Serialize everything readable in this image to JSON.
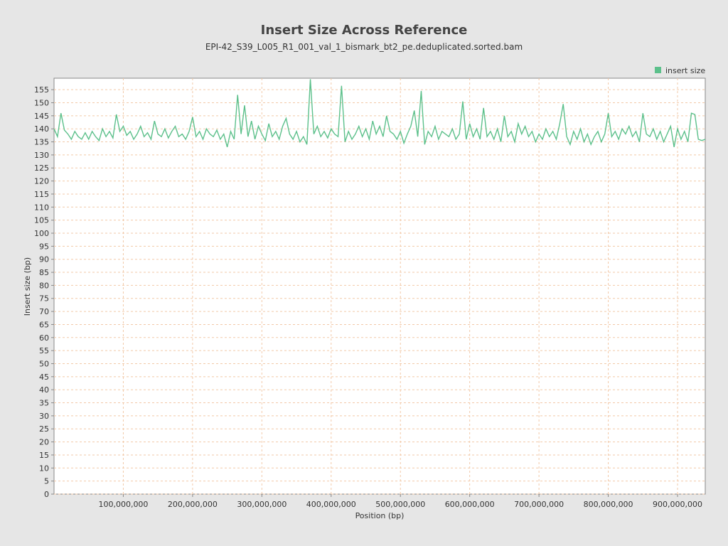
{
  "chart_data": {
    "type": "line",
    "title": "Insert Size Across Reference",
    "subtitle": "EPI-42_S39_L005_R1_001_val_1_bismark_bt2_pe.deduplicated.sorted.bam",
    "x_label": "Position (bp)",
    "y_label": "Insert size (bp)",
    "legend": "top-right",
    "grid": true,
    "xlim": [
      0,
      940000000
    ],
    "ylim": [
      0,
      159.4
    ],
    "xticks": [
      {
        "value": 100000000,
        "label": "100,000,000"
      },
      {
        "value": 200000000,
        "label": "200,000,000"
      },
      {
        "value": 300000000,
        "label": "300,000,000"
      },
      {
        "value": 400000000,
        "label": "400,000,000"
      },
      {
        "value": 500000000,
        "label": "500,000,000"
      },
      {
        "value": 600000000,
        "label": "600,000,000"
      },
      {
        "value": 700000000,
        "label": "700,000,000"
      },
      {
        "value": 800000000,
        "label": "800,000,000"
      },
      {
        "value": 900000000,
        "label": "900,000,000"
      }
    ],
    "yticks": [
      0,
      5,
      10,
      15,
      20,
      25,
      30,
      35,
      40,
      45,
      50,
      55,
      60,
      65,
      70,
      75,
      80,
      85,
      90,
      95,
      100,
      105,
      110,
      115,
      120,
      125,
      130,
      135,
      140,
      145,
      150,
      155
    ],
    "x": [
      0,
      5000000,
      10000000,
      15000000,
      20000000,
      25000000,
      30000000,
      35000000,
      40000000,
      45000000,
      50000000,
      55000000,
      60000000,
      65000000,
      70000000,
      75000000,
      80000000,
      85000000,
      90000000,
      95000000,
      100000000,
      105000000,
      110000000,
      115000000,
      120000000,
      125000000,
      130000000,
      135000000,
      140000000,
      145000000,
      150000000,
      155000000,
      160000000,
      165000000,
      170000000,
      175000000,
      180000000,
      185000000,
      190000000,
      195000000,
      200000000,
      205000000,
      210000000,
      215000000,
      220000000,
      225000000,
      230000000,
      235000000,
      240000000,
      245000000,
      250000000,
      255000000,
      260000000,
      265000000,
      270000000,
      275000000,
      280000000,
      285000000,
      290000000,
      295000000,
      300000000,
      305000000,
      310000000,
      315000000,
      320000000,
      325000000,
      330000000,
      335000000,
      340000000,
      345000000,
      350000000,
      355000000,
      360000000,
      365000000,
      370000000,
      375000000,
      380000000,
      385000000,
      390000000,
      395000000,
      400000000,
      405000000,
      410000000,
      415000000,
      420000000,
      425000000,
      430000000,
      435000000,
      440000000,
      445000000,
      450000000,
      455000000,
      460000000,
      465000000,
      470000000,
      475000000,
      480000000,
      485000000,
      490000000,
      495000000,
      500000000,
      505000000,
      510000000,
      515000000,
      520000000,
      525000000,
      530000000,
      535000000,
      540000000,
      545000000,
      550000000,
      555000000,
      560000000,
      565000000,
      570000000,
      575000000,
      580000000,
      585000000,
      590000000,
      595000000,
      600000000,
      605000000,
      610000000,
      615000000,
      620000000,
      625000000,
      630000000,
      635000000,
      640000000,
      645000000,
      650000000,
      655000000,
      660000000,
      665000000,
      670000000,
      675000000,
      680000000,
      685000000,
      690000000,
      695000000,
      700000000,
      705000000,
      710000000,
      715000000,
      720000000,
      725000000,
      730000000,
      735000000,
      740000000,
      745000000,
      750000000,
      755000000,
      760000000,
      765000000,
      770000000,
      775000000,
      780000000,
      785000000,
      790000000,
      795000000,
      800000000,
      805000000,
      810000000,
      815000000,
      820000000,
      825000000,
      830000000,
      835000000,
      840000000,
      845000000,
      850000000,
      855000000,
      860000000,
      865000000,
      870000000,
      875000000,
      880000000,
      885000000,
      890000000,
      895000000,
      900000000,
      905000000,
      910000000,
      915000000,
      920000000,
      925000000,
      930000000,
      935000000,
      940000000
    ],
    "series": [
      {
        "name": "insert size",
        "color": "#5cc08b",
        "values": [
          140,
          137,
          146,
          139.5,
          138,
          136,
          139,
          137,
          136,
          138.5,
          136,
          139,
          137,
          135.5,
          140,
          137,
          139,
          136.5,
          145.5,
          139,
          141,
          137.5,
          139,
          136,
          138,
          141,
          137,
          138.5,
          136,
          143,
          138,
          137,
          140,
          136.5,
          139,
          141,
          137,
          138,
          136,
          139,
          144.5,
          137,
          139,
          136,
          140,
          138,
          137,
          139.5,
          136,
          138,
          133,
          139,
          136,
          153,
          138,
          149,
          137,
          143,
          136,
          141,
          138,
          135.5,
          142,
          137,
          139,
          136,
          141,
          144,
          138,
          136,
          139,
          135,
          137,
          134,
          159,
          138,
          141,
          137,
          139,
          136.5,
          140,
          138,
          137,
          156.5,
          135,
          139,
          136,
          138,
          141,
          137,
          140,
          136,
          143,
          138,
          141,
          137,
          145,
          139,
          138,
          136,
          139,
          134.5,
          138,
          141,
          147,
          137,
          154.5,
          134,
          139,
          137,
          141,
          136,
          139,
          138,
          137,
          140,
          136,
          138,
          150.5,
          136,
          142,
          137,
          140,
          136,
          148,
          137,
          139,
          136,
          140,
          135,
          145,
          137,
          139,
          135,
          142,
          138,
          141,
          137,
          139,
          135,
          138,
          136,
          140,
          137,
          139,
          136,
          142,
          149.5,
          137,
          134,
          139,
          136,
          140,
          135,
          138,
          134,
          137,
          139,
          135,
          138,
          146,
          137,
          139,
          136,
          140,
          138,
          141,
          137,
          139,
          135,
          146,
          138,
          137,
          140,
          136,
          139,
          135,
          138,
          141,
          133,
          140,
          136,
          139,
          135,
          146,
          145.5,
          136,
          135.5,
          136
        ]
      }
    ]
  }
}
